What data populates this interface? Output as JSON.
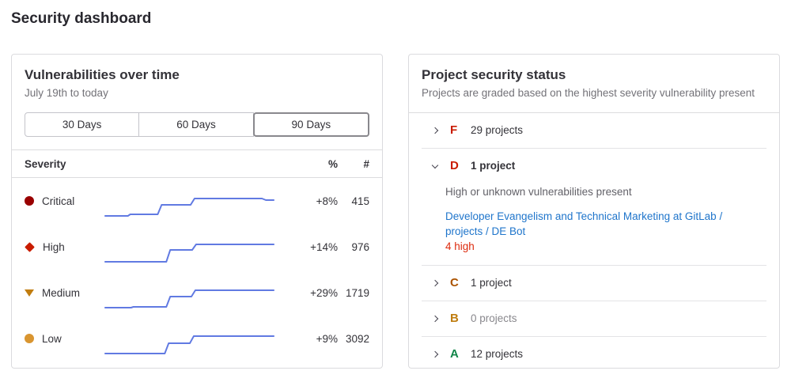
{
  "page": {
    "title": "Security dashboard"
  },
  "colors": {
    "sparkline_blue": "#617ae2",
    "link_blue": "#1f75cb",
    "panel_border": "#dbdbde"
  },
  "vulnerabilities_panel": {
    "title": "Vulnerabilities over time",
    "subtitle": "July 19th to today",
    "range_buttons": [
      {
        "label": "30 Days",
        "selected": false
      },
      {
        "label": "60 Days",
        "selected": false
      },
      {
        "label": "90 Days",
        "selected": true
      }
    ],
    "table_headers": {
      "severity": "Severity",
      "percent": "%",
      "count": "#"
    },
    "rows": [
      {
        "severity": "Critical",
        "icon": "severity-critical-icon",
        "shape": "circle",
        "color": "#990000",
        "percent": "+8%",
        "count": "415",
        "spark": [
          [
            2,
            27
          ],
          [
            31,
            27
          ],
          [
            34,
            25
          ],
          [
            69,
            25
          ],
          [
            74,
            13
          ],
          [
            111,
            13
          ],
          [
            116,
            5
          ],
          [
            202,
            5
          ],
          [
            207,
            7
          ],
          [
            217,
            7
          ]
        ]
      },
      {
        "severity": "High",
        "icon": "severity-high-icon",
        "shape": "diamond",
        "color": "#c91c00",
        "percent": "+14%",
        "count": "976",
        "spark": [
          [
            2,
            27
          ],
          [
            80,
            27
          ],
          [
            85,
            12
          ],
          [
            113,
            12
          ],
          [
            118,
            5
          ],
          [
            217,
            5
          ]
        ]
      },
      {
        "severity": "Medium",
        "icon": "severity-medium-icon",
        "shape": "triangle",
        "color": "#c17d10",
        "percent": "+29%",
        "count": "1719",
        "spark": [
          [
            2,
            27
          ],
          [
            35,
            27
          ],
          [
            38,
            26
          ],
          [
            80,
            26
          ],
          [
            85,
            13
          ],
          [
            112,
            13
          ],
          [
            117,
            5
          ],
          [
            217,
            5
          ]
        ]
      },
      {
        "severity": "Low",
        "icon": "severity-low-icon",
        "shape": "circle",
        "color": "#d99530",
        "percent": "+9%",
        "count": "3092",
        "spark": [
          [
            2,
            27
          ],
          [
            78,
            27
          ],
          [
            83,
            14
          ],
          [
            110,
            14
          ],
          [
            115,
            5
          ],
          [
            217,
            5
          ]
        ]
      }
    ]
  },
  "project_status_panel": {
    "title": "Project security status",
    "subtitle": "Projects are graded based on the highest severity vulnerability present",
    "grades": [
      {
        "letter": "F",
        "color": "#c91c00",
        "count_label": "29 projects",
        "expanded": false,
        "muted": false
      },
      {
        "letter": "D",
        "color": "#c91c00",
        "count_label": "1 project",
        "expanded": true,
        "muted": false,
        "description": "High or unknown vulnerabilities present",
        "projects": [
          {
            "name": "Developer Evangelism and Technical Marketing at GitLab / projects / DE Bot",
            "summary": "4 high",
            "summary_color": "#dd2b0e"
          }
        ]
      },
      {
        "letter": "C",
        "color": "#ab5300",
        "count_label": "1 project",
        "expanded": false,
        "muted": false
      },
      {
        "letter": "B",
        "color": "#bf7d10",
        "count_label": "0 projects",
        "expanded": false,
        "muted": true
      },
      {
        "letter": "A",
        "color": "#108548",
        "count_label": "12 projects",
        "expanded": false,
        "muted": false
      }
    ]
  }
}
